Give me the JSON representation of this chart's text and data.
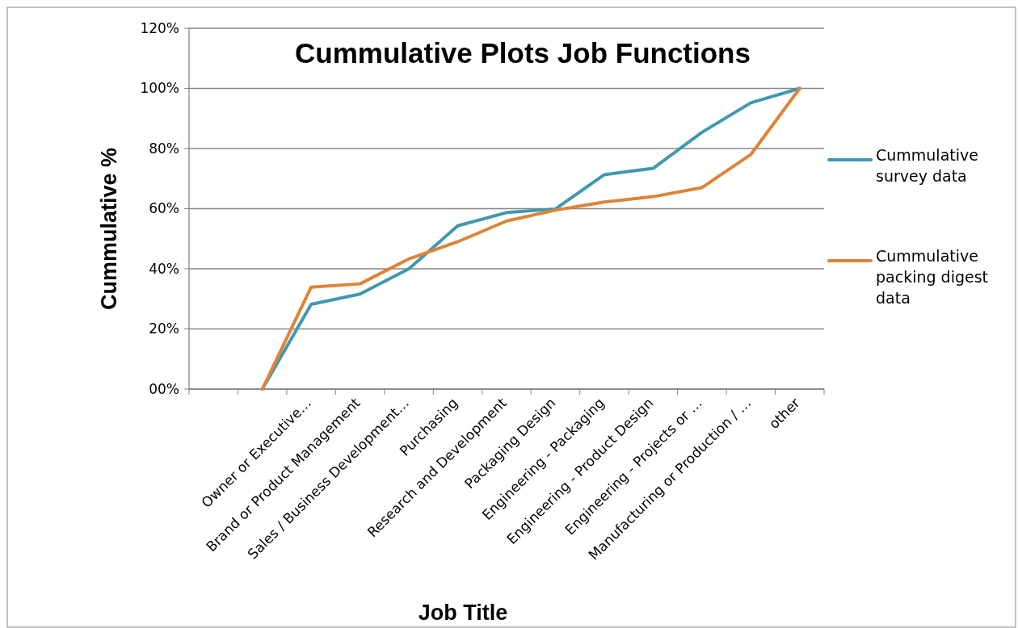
{
  "chart_data": {
    "type": "line",
    "title": "Cummulative Plots Job Functions",
    "xlabel": "Job Title",
    "ylabel": "Cummulative %",
    "categories": [
      null,
      null,
      "Owner or Executive…",
      "Brand or Product Management",
      "Sales /  Business Development…",
      "Purchasing",
      "Research and Development",
      "Packaging Design",
      "Engineering - Packaging",
      "Engineering - Product Design",
      "Engineering - Projects or …",
      "Manufacturing or Production / …",
      "other"
    ],
    "series": [
      {
        "name": "Cummulative survey data",
        "color": "#4198b0",
        "values": [
          null,
          0,
          28.2,
          31.6,
          40,
          54.3,
          58.7,
          59.9,
          71.3,
          73.4,
          85.4,
          95.2,
          100
        ]
      },
      {
        "name": "Cummulative packing digest data",
        "color": "#dd8438",
        "values": [
          null,
          0,
          33.9,
          35,
          43.3,
          49,
          55.9,
          59.5,
          62.2,
          64,
          67,
          78,
          100
        ]
      }
    ],
    "ylim": [
      0,
      120
    ],
    "yticks": [
      {
        "value": 0,
        "label": "00%"
      },
      {
        "value": 20,
        "label": "20%"
      },
      {
        "value": 40,
        "label": "40%"
      },
      {
        "value": 60,
        "label": "60%"
      },
      {
        "value": 80,
        "label": "80%"
      },
      {
        "value": 100,
        "label": "100%"
      },
      {
        "value": 120,
        "label": "120%"
      }
    ],
    "grid": "y",
    "legend": "right",
    "marker": "none",
    "line_style": "solid"
  }
}
